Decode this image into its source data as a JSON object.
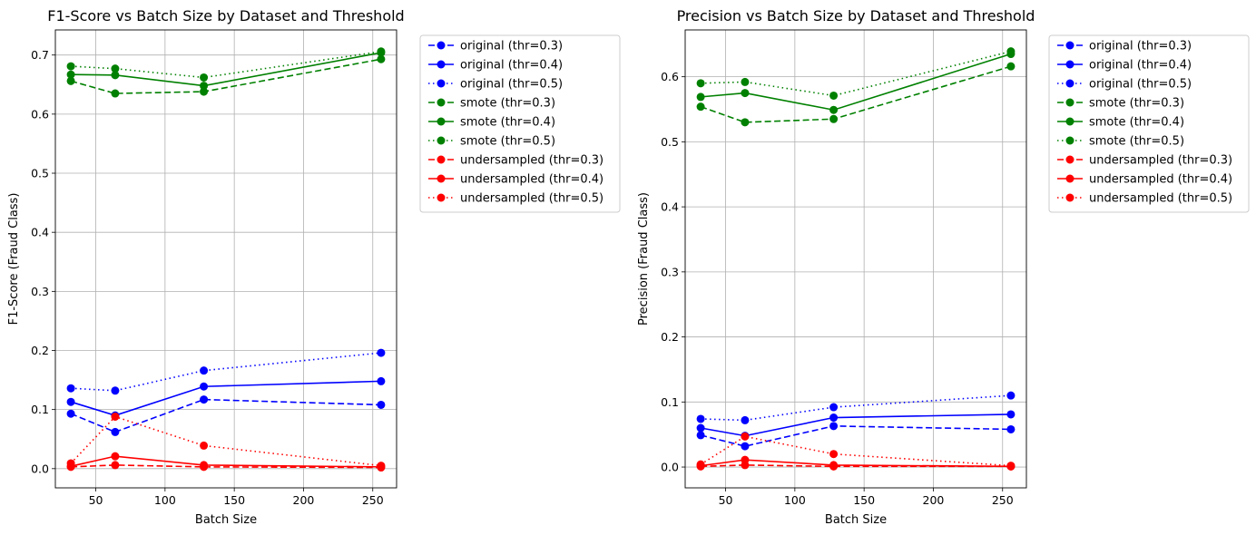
{
  "chart_data": [
    {
      "type": "line",
      "title": "F1-Score vs Batch Size by Dataset and Threshold",
      "xlabel": "Batch Size",
      "ylabel": "F1-Score (Fraud Class)",
      "xlim": [
        20.8,
        267.2
      ],
      "ylim": [
        -0.0325,
        0.7425
      ],
      "xticks": [
        50,
        100,
        150,
        200,
        250
      ],
      "yticks": [
        0.0,
        0.1,
        0.2,
        0.3,
        0.4,
        0.5,
        0.6,
        0.7
      ],
      "ytick_labels": [
        "0.0",
        "0.1",
        "0.2",
        "0.3",
        "0.4",
        "0.5",
        "0.6",
        "0.7"
      ],
      "grid": true,
      "legend_position": "outside-right",
      "x": [
        32,
        64,
        128,
        256
      ],
      "series": [
        {
          "name": "original (thr=0.3)",
          "color": "#0000ff",
          "linestyle": "dashed",
          "values": [
            0.093,
            0.062,
            0.117,
            0.108
          ]
        },
        {
          "name": "original (thr=0.4)",
          "color": "#0000ff",
          "linestyle": "solid",
          "values": [
            0.113,
            0.09,
            0.139,
            0.148
          ]
        },
        {
          "name": "original (thr=0.5)",
          "color": "#0000ff",
          "linestyle": "dotted",
          "values": [
            0.136,
            0.132,
            0.166,
            0.196
          ]
        },
        {
          "name": "smote (thr=0.3)",
          "color": "#008000",
          "linestyle": "dashed",
          "values": [
            0.656,
            0.635,
            0.638,
            0.693
          ]
        },
        {
          "name": "smote (thr=0.4)",
          "color": "#008000",
          "linestyle": "solid",
          "values": [
            0.667,
            0.666,
            0.648,
            0.704
          ]
        },
        {
          "name": "smote (thr=0.5)",
          "color": "#008000",
          "linestyle": "dotted",
          "values": [
            0.681,
            0.677,
            0.662,
            0.706
          ]
        },
        {
          "name": "undersampled (thr=0.3)",
          "color": "#ff0000",
          "linestyle": "dashed",
          "values": [
            0.003,
            0.006,
            0.003,
            0.002
          ]
        },
        {
          "name": "undersampled (thr=0.4)",
          "color": "#ff0000",
          "linestyle": "solid",
          "values": [
            0.004,
            0.021,
            0.006,
            0.003
          ]
        },
        {
          "name": "undersampled (thr=0.5)",
          "color": "#ff0000",
          "linestyle": "dotted",
          "values": [
            0.009,
            0.088,
            0.039,
            0.005
          ]
        }
      ]
    },
    {
      "type": "line",
      "title": "Precision vs Batch Size by Dataset and Threshold",
      "xlabel": "Batch Size",
      "ylabel": "Precision (Fraud Class)",
      "xlim": [
        20.8,
        267.2
      ],
      "ylim": [
        -0.032,
        0.672
      ],
      "xticks": [
        50,
        100,
        150,
        200,
        250
      ],
      "yticks": [
        0.0,
        0.1,
        0.2,
        0.3,
        0.4,
        0.5,
        0.6
      ],
      "ytick_labels": [
        "0.0",
        "0.1",
        "0.2",
        "0.3",
        "0.4",
        "0.5",
        "0.6"
      ],
      "grid": true,
      "legend_position": "outside-right",
      "x": [
        32,
        64,
        128,
        256
      ],
      "series": [
        {
          "name": "original (thr=0.3)",
          "color": "#0000ff",
          "linestyle": "dashed",
          "values": [
            0.049,
            0.032,
            0.063,
            0.058
          ]
        },
        {
          "name": "original (thr=0.4)",
          "color": "#0000ff",
          "linestyle": "solid",
          "values": [
            0.06,
            0.048,
            0.076,
            0.081
          ]
        },
        {
          "name": "original (thr=0.5)",
          "color": "#0000ff",
          "linestyle": "dotted",
          "values": [
            0.074,
            0.072,
            0.092,
            0.11
          ]
        },
        {
          "name": "smote (thr=0.3)",
          "color": "#008000",
          "linestyle": "dashed",
          "values": [
            0.554,
            0.53,
            0.535,
            0.616
          ]
        },
        {
          "name": "smote (thr=0.4)",
          "color": "#008000",
          "linestyle": "solid",
          "values": [
            0.569,
            0.575,
            0.549,
            0.635
          ]
        },
        {
          "name": "smote (thr=0.5)",
          "color": "#008000",
          "linestyle": "dotted",
          "values": [
            0.59,
            0.592,
            0.571,
            0.639
          ]
        },
        {
          "name": "undersampled (thr=0.3)",
          "color": "#ff0000",
          "linestyle": "dashed",
          "values": [
            0.001,
            0.003,
            0.001,
            0.001
          ]
        },
        {
          "name": "undersampled (thr=0.4)",
          "color": "#ff0000",
          "linestyle": "solid",
          "values": [
            0.002,
            0.011,
            0.003,
            0.001
          ]
        },
        {
          "name": "undersampled (thr=0.5)",
          "color": "#ff0000",
          "linestyle": "dotted",
          "values": [
            0.004,
            0.047,
            0.02,
            0.002
          ]
        }
      ]
    }
  ]
}
